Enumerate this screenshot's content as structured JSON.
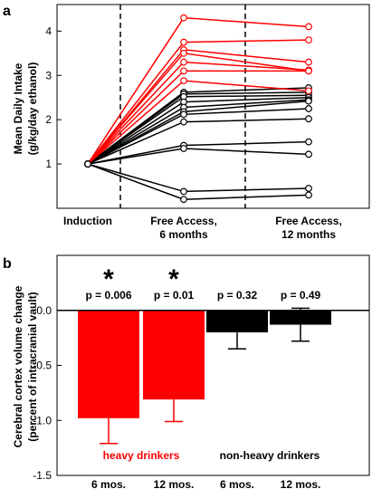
{
  "chart_data": [
    {
      "panel": "a",
      "type": "line",
      "ylabel_line1": "Mean Daily Intake",
      "ylabel_line2": "(g/kg/day ethanol)",
      "xlabel": "",
      "ylim": [
        0,
        4.6
      ],
      "yticks": [
        1,
        2,
        3,
        4
      ],
      "categories": [
        {
          "line1": "Induction",
          "line2": ""
        },
        {
          "line1": "Free Access,",
          "line2": "6 months"
        },
        {
          "line1": "Free Access,",
          "line2": "12 months"
        }
      ],
      "dividers": "dashed lines between periods",
      "colors": {
        "heavy": "#ff0000",
        "nonheavy": "#000000"
      },
      "series": [
        {
          "group": "heavy",
          "values": [
            1,
            4.3,
            4.1
          ]
        },
        {
          "group": "heavy",
          "values": [
            1,
            3.75,
            3.8
          ]
        },
        {
          "group": "heavy",
          "values": [
            1,
            3.58,
            3.3
          ]
        },
        {
          "group": "heavy",
          "values": [
            1,
            3.5,
            3.1
          ]
        },
        {
          "group": "heavy",
          "values": [
            1,
            3.3,
            3.12
          ]
        },
        {
          "group": "heavy",
          "values": [
            1,
            3.1,
            3.1
          ]
        },
        {
          "group": "heavy",
          "values": [
            1,
            2.88,
            2.65
          ]
        },
        {
          "group": "nonheavy",
          "values": [
            1,
            2.62,
            2.72
          ]
        },
        {
          "group": "nonheavy",
          "values": [
            1,
            2.58,
            2.62
          ]
        },
        {
          "group": "nonheavy",
          "values": [
            1,
            2.52,
            2.55
          ]
        },
        {
          "group": "nonheavy",
          "values": [
            1,
            2.4,
            2.5
          ]
        },
        {
          "group": "nonheavy",
          "values": [
            1,
            2.28,
            2.45
          ]
        },
        {
          "group": "nonheavy",
          "values": [
            1,
            2.18,
            2.42
          ]
        },
        {
          "group": "nonheavy",
          "values": [
            1,
            2.12,
            2.25
          ]
        },
        {
          "group": "nonheavy",
          "values": [
            1,
            1.95,
            2.02
          ]
        },
        {
          "group": "nonheavy",
          "values": [
            1,
            1.42,
            1.5
          ]
        },
        {
          "group": "nonheavy",
          "values": [
            1,
            1.35,
            1.22
          ]
        },
        {
          "group": "nonheavy",
          "values": [
            1,
            0.38,
            0.45
          ]
        },
        {
          "group": "nonheavy",
          "values": [
            1,
            0.2,
            0.3
          ]
        }
      ]
    },
    {
      "panel": "b",
      "type": "bar",
      "ylabel_line1": "Cerebral cortex volume change",
      "ylabel_line2": "(percent of intracranial vault)",
      "xlabel": "",
      "ylim": [
        -1.5,
        0.5
      ],
      "yticks": [
        -1.5,
        -1.0,
        -0.5,
        0.0
      ],
      "ytick_labels": [
        "-1.5",
        "-1.0",
        "-0.5",
        "0.0"
      ],
      "categories": [
        "6 mos.",
        "12 mos.",
        "6 mos.",
        "12 mos."
      ],
      "values": [
        -0.98,
        -0.81,
        -0.2,
        -0.13
      ],
      "errors": [
        0.23,
        0.2,
        0.15,
        0.15
      ],
      "colors": [
        "#ff0000",
        "#ff0000",
        "#000000",
        "#000000"
      ],
      "p_values": [
        "p = 0.006",
        "p = 0.01",
        "p = 0.32",
        "p = 0.49"
      ],
      "significant": [
        true,
        true,
        false,
        false
      ],
      "star_label": "*",
      "group_labels": [
        {
          "text": "heavy drinkers",
          "color": "#ff0000"
        },
        {
          "text": "non-heavy drinkers",
          "color": "#000000"
        }
      ]
    }
  ]
}
